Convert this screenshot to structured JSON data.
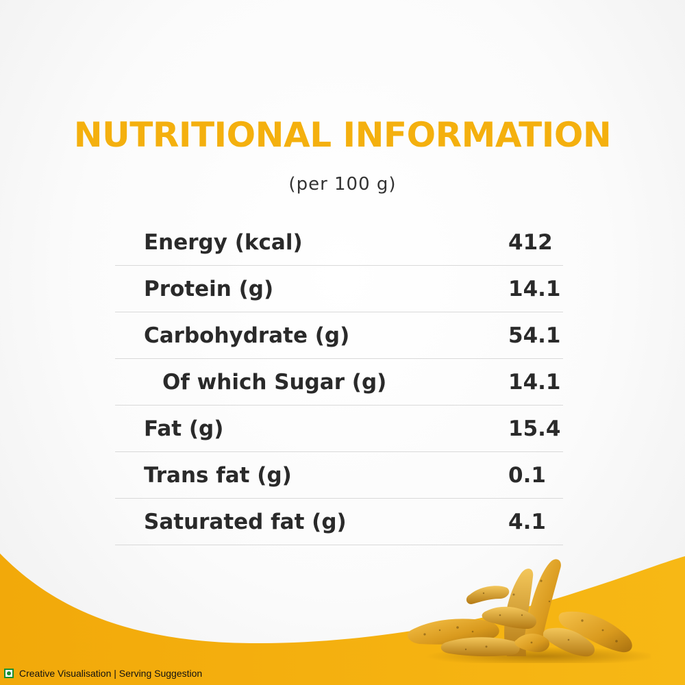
{
  "title": "NUTRITIONAL INFORMATION",
  "subtitle": "(per 100 g)",
  "nutrients": [
    {
      "label": "Energy (kcal)",
      "value": "412"
    },
    {
      "label": "Protein (g)",
      "value": "14.1"
    },
    {
      "label": "Carbohydrate (g)",
      "value": "54.1"
    },
    {
      "label": "Of which Sugar (g)",
      "value": "14.1"
    },
    {
      "label": "Fat (g)",
      "value": "15.4"
    },
    {
      "label": "Trans fat (g)",
      "value": "0.1"
    },
    {
      "label": "Saturated fat (g)",
      "value": "4.1"
    }
  ],
  "footer": {
    "text": "Creative Visualisation | Serving Suggestion",
    "icon": "veg-mark-icon"
  },
  "colors": {
    "accent": "#f4b00e",
    "text": "#2a2a2a",
    "veg_green": "#1a8f2f"
  },
  "illustration": "turmeric-roots"
}
